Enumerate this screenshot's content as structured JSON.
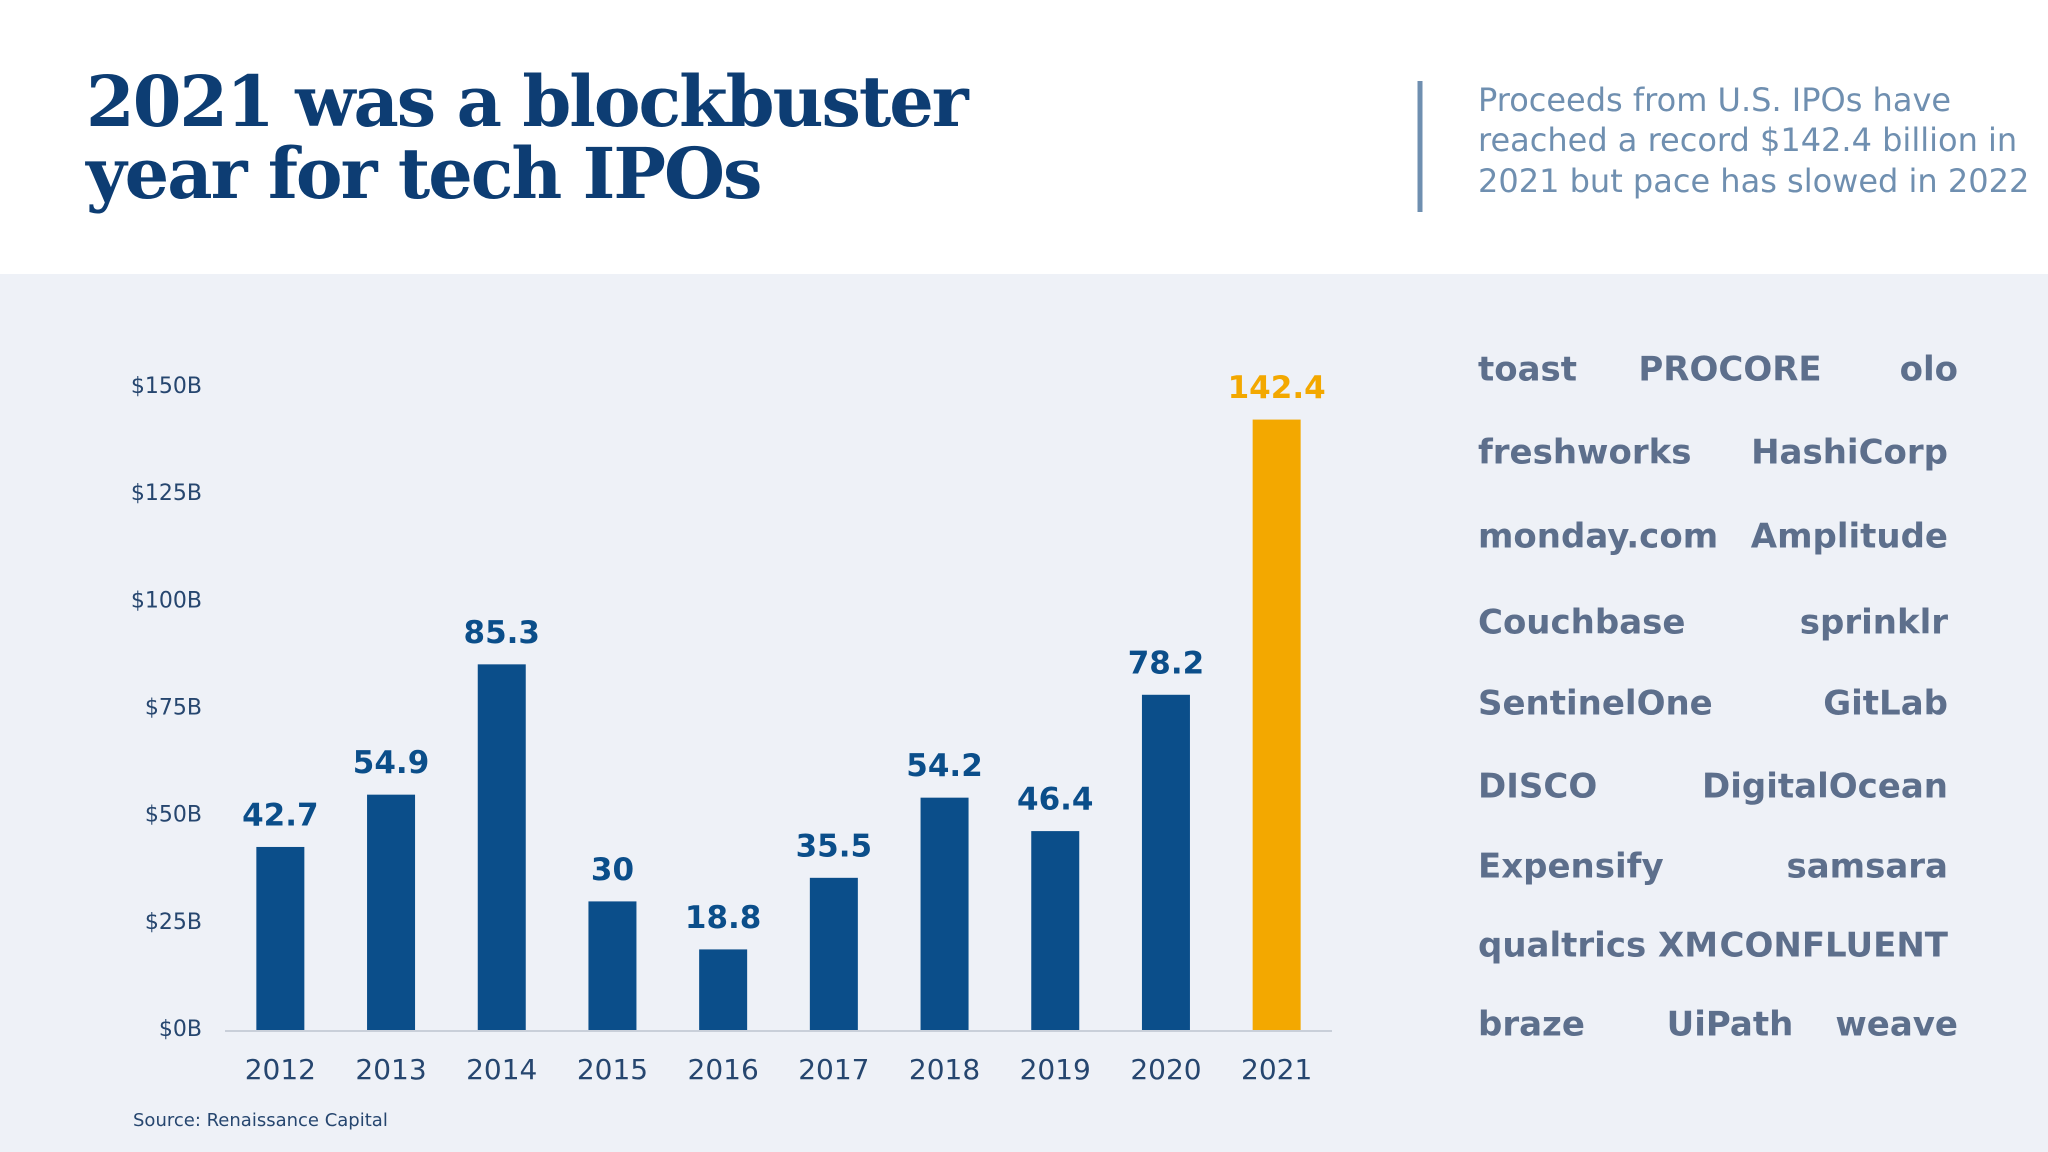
{
  "header": {
    "title": [
      "2021 was a blockbuster",
      "year for tech IPOs"
    ],
    "subtitle": [
      "Proceeds from U.S. IPOs have",
      "reached a record $142.4 billion in",
      "2021 but pace has slowed in 2022"
    ]
  },
  "chart_data": {
    "type": "bar",
    "categories": [
      "2012",
      "2013",
      "2014",
      "2015",
      "2016",
      "2017",
      "2018",
      "2019",
      "2020",
      "2021"
    ],
    "values": [
      42.7,
      54.9,
      85.3,
      30,
      18.8,
      35.5,
      54.2,
      46.4,
      78.2,
      142.4
    ],
    "colors": [
      "#0b4e8a",
      "#0b4e8a",
      "#0b4e8a",
      "#0b4e8a",
      "#0b4e8a",
      "#0b4e8a",
      "#0b4e8a",
      "#0b4e8a",
      "#0b4e8a",
      "#f3a800"
    ],
    "ylim": [
      0,
      150
    ],
    "yticks": [
      {
        "value": 0,
        "label": "$0B"
      },
      {
        "value": 25,
        "label": "$25B"
      },
      {
        "value": 50,
        "label": "$50B"
      },
      {
        "value": 75,
        "label": "$75B"
      },
      {
        "value": 100,
        "label": "$100B"
      },
      {
        "value": 125,
        "label": "$125B"
      },
      {
        "value": 150,
        "label": "$150B"
      }
    ],
    "grid": false
  },
  "source": "Source: Renaissance Capital",
  "logos": [
    [
      "toast",
      "PROCORE",
      "olo"
    ],
    [
      "freshworks",
      "HashiCorp"
    ],
    [
      "monday.com",
      "Amplitude"
    ],
    [
      "Couchbase",
      "sprinklr"
    ],
    [
      "SentinelOne",
      "GitLab"
    ],
    [
      "DISCO",
      "DigitalOcean"
    ],
    [
      "Expensify",
      "samsara"
    ],
    [
      "qualtrics XM",
      "CONFLUENT"
    ],
    [
      "braze",
      "UiPath",
      "weave"
    ]
  ]
}
